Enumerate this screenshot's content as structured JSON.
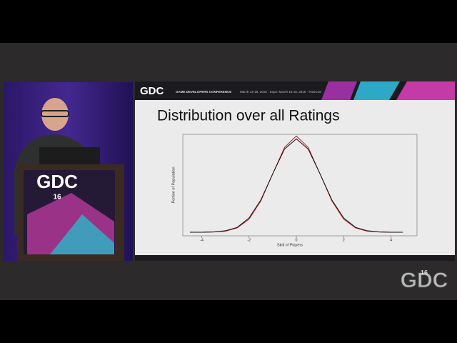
{
  "slide_header": {
    "logo": "GDC",
    "event": "GAME DEVELOPERS CONFERENCE",
    "dates": "March 14-18, 2016 · Expo: March 16-18, 2016 · #GDC16"
  },
  "podium": {
    "logo": "GDC",
    "year": "16"
  },
  "watermark": {
    "logo": "GDC",
    "year": "16"
  },
  "chart_data": {
    "type": "line",
    "title": "Distribution over all Ratings",
    "x_label": "Skill of Players",
    "y_label": "Portion of Population",
    "x": [
      -4.5,
      -4,
      -3.5,
      -3,
      -2.5,
      -2,
      -1.5,
      -1,
      -0.5,
      0,
      0.5,
      1,
      1.5,
      2,
      2.5,
      3,
      3.5,
      4,
      4.5
    ],
    "series": [
      {
        "color": "#d62020",
        "values": [
          0,
          0,
          0.001,
          0.004,
          0.018,
          0.054,
          0.13,
          0.242,
          0.352,
          0.399,
          0.352,
          0.242,
          0.13,
          0.054,
          0.018,
          0.004,
          0.001,
          0,
          0
        ]
      },
      {
        "color": "#111111",
        "values": [
          0,
          0,
          0.001,
          0.006,
          0.02,
          0.059,
          0.134,
          0.242,
          0.345,
          0.387,
          0.345,
          0.242,
          0.134,
          0.059,
          0.02,
          0.006,
          0.001,
          0,
          0
        ]
      }
    ],
    "xlim": [
      -4.8,
      5.1
    ],
    "xticks": [
      -4,
      -2,
      0,
      2,
      4
    ],
    "ylim": [
      -0.015,
      0.406
    ]
  }
}
